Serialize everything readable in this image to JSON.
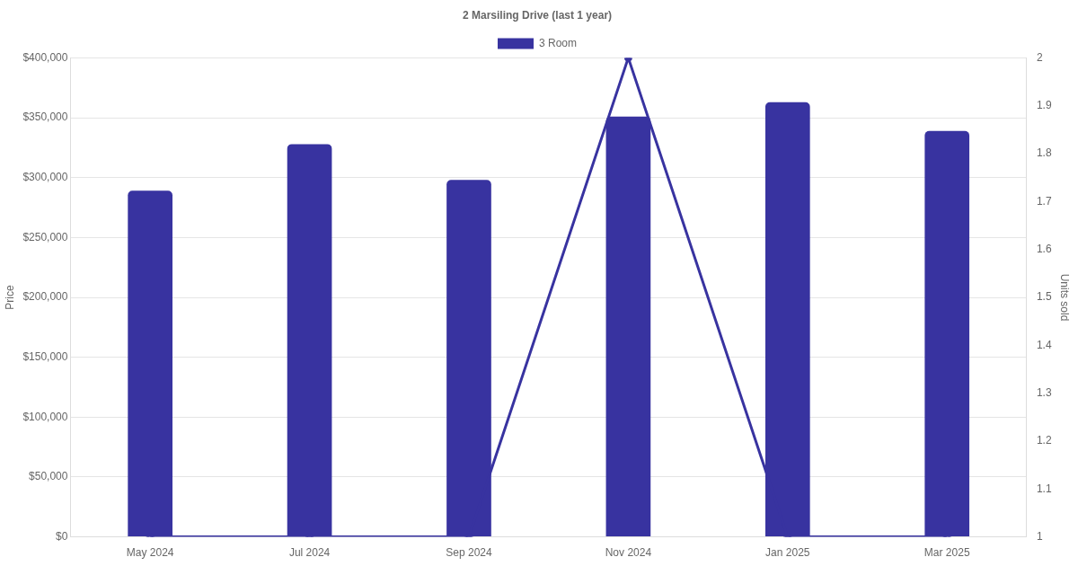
{
  "chart_data": {
    "type": "bar",
    "title": "2 Marsiling Drive (last 1 year)",
    "ylabel": "Price",
    "y2label": "Units sold",
    "categories": [
      "May 2024",
      "Jul 2024",
      "Sep 2024",
      "Nov 2024",
      "Jan 2025",
      "Mar 2025"
    ],
    "series": [
      {
        "name": "3 Room",
        "color": "#3833a0",
        "values": [
          289000,
          328000,
          298000,
          351000,
          363000,
          339000
        ]
      },
      {
        "type": "line",
        "axis": "y2",
        "color": "#3833a0",
        "values": [
          1,
          1,
          1,
          2,
          1,
          1
        ]
      }
    ],
    "ylim": [
      0,
      400000
    ],
    "yticks": [
      {
        "value": 0,
        "label": "$0"
      },
      {
        "value": 50000,
        "label": "$50,000"
      },
      {
        "value": 100000,
        "label": "$100,000"
      },
      {
        "value": 150000,
        "label": "$150,000"
      },
      {
        "value": 200000,
        "label": "$200,000"
      },
      {
        "value": 250000,
        "label": "$250,000"
      },
      {
        "value": 300000,
        "label": "$300,000"
      },
      {
        "value": 350000,
        "label": "$350,000"
      },
      {
        "value": 400000,
        "label": "$400,000"
      }
    ],
    "y2lim": [
      1,
      2
    ],
    "y2ticks": [
      1,
      1.1,
      1.2,
      1.3,
      1.4,
      1.5,
      1.6,
      1.7,
      1.8,
      1.9,
      2
    ],
    "grid": "y",
    "legend": "top",
    "marker": "circle",
    "line_style": "solid"
  }
}
